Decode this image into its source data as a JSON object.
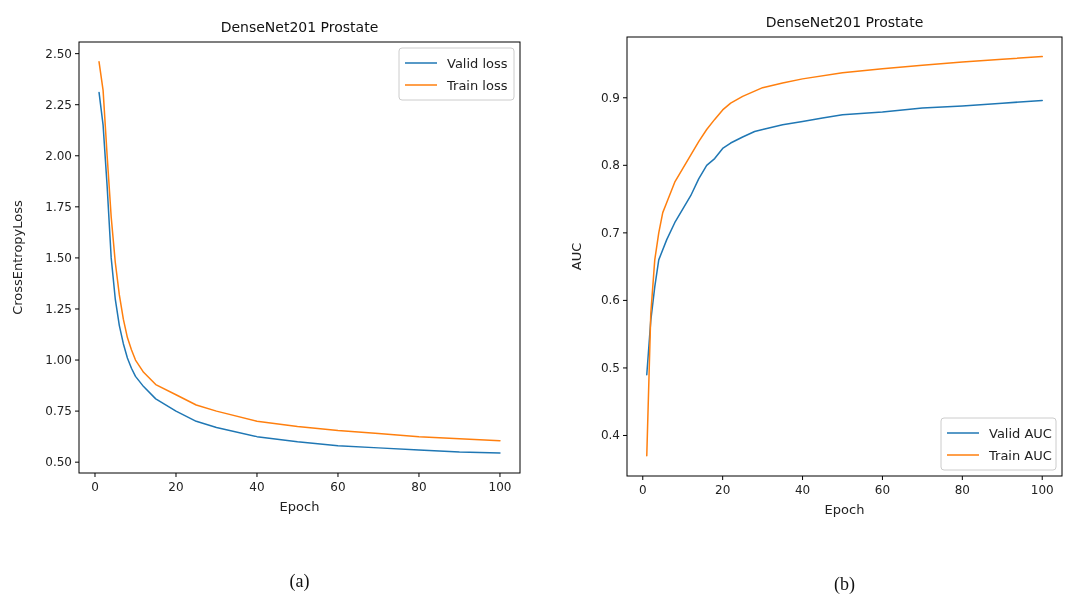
{
  "chart_data": [
    {
      "type": "line",
      "title": "DenseNet201 Prostate",
      "xlabel": "Epoch",
      "ylabel": "CrossEntropyLoss",
      "annotations": [
        "(a)"
      ],
      "legend": "top right",
      "xlim": [
        -3.95,
        104.95
      ],
      "ylim": [
        0.447,
        2.557
      ],
      "xticks": [
        0,
        20,
        40,
        60,
        80,
        100
      ],
      "yticks": [
        {
          "value": 0.5,
          "label": "0.50"
        },
        {
          "value": 0.75,
          "label": "0.75"
        },
        {
          "value": 1.0,
          "label": "1.00"
        },
        {
          "value": 1.25,
          "label": "1.25"
        },
        {
          "value": 1.5,
          "label": "1.50"
        },
        {
          "value": 1.75,
          "label": "1.75"
        },
        {
          "value": 2.0,
          "label": "2.00"
        },
        {
          "value": 2.25,
          "label": "2.25"
        },
        {
          "value": 2.5,
          "label": "2.50"
        }
      ],
      "x": [
        1,
        2,
        3,
        4,
        5,
        6,
        7,
        8,
        9,
        10,
        12,
        15,
        20,
        25,
        30,
        40,
        50,
        60,
        70,
        80,
        90,
        100
      ],
      "series": [
        {
          "name": "Valid loss",
          "color": "#1f77b4",
          "values": [
            2.31,
            2.15,
            1.85,
            1.5,
            1.3,
            1.17,
            1.08,
            1.01,
            0.96,
            0.92,
            0.87,
            0.81,
            0.75,
            0.7,
            0.67,
            0.625,
            0.6,
            0.58,
            0.57,
            0.56,
            0.55,
            0.545
          ]
        },
        {
          "name": "Train loss",
          "color": "#ff7f0e",
          "values": [
            2.46,
            2.32,
            2.0,
            1.7,
            1.48,
            1.32,
            1.2,
            1.11,
            1.05,
            1.0,
            0.94,
            0.88,
            0.83,
            0.78,
            0.75,
            0.7,
            0.675,
            0.655,
            0.64,
            0.625,
            0.615,
            0.605
          ]
        }
      ]
    },
    {
      "type": "line",
      "title": "DenseNet201 Prostate",
      "xlabel": "Epoch",
      "ylabel": "AUC",
      "annotations": [
        "(b)"
      ],
      "legend": "bottom right",
      "xlim": [
        -3.95,
        104.95
      ],
      "ylim": [
        0.34,
        0.99
      ],
      "xticks": [
        0,
        20,
        40,
        60,
        80,
        100
      ],
      "yticks": [
        0.4,
        0.5,
        0.6,
        0.7,
        0.8,
        0.9
      ],
      "series": [
        {
          "name": "Valid AUC",
          "color": "#1f77b4",
          "x": [
            1,
            2,
            3,
            4,
            6,
            8,
            10,
            12,
            14,
            16,
            18,
            20,
            22,
            25,
            28,
            30,
            35,
            40,
            45,
            50,
            60,
            70,
            80,
            90,
            100
          ],
          "values": [
            0.49,
            0.57,
            0.62,
            0.66,
            0.69,
            0.715,
            0.735,
            0.755,
            0.78,
            0.8,
            0.81,
            0.825,
            0.833,
            0.842,
            0.85,
            0.853,
            0.86,
            0.865,
            0.87,
            0.875,
            0.879,
            0.885,
            0.888,
            0.892,
            0.896
          ]
        },
        {
          "name": "Train AUC",
          "color": "#ff7f0e",
          "x": [
            1,
            2,
            3,
            4,
            5,
            6,
            8,
            10,
            12,
            14,
            16,
            18,
            20,
            22,
            25,
            30,
            35,
            40,
            50,
            60,
            70,
            80,
            90,
            100
          ],
          "values": [
            0.37,
            0.58,
            0.66,
            0.7,
            0.73,
            0.745,
            0.775,
            0.795,
            0.815,
            0.835,
            0.853,
            0.868,
            0.882,
            0.892,
            0.902,
            0.915,
            0.922,
            0.928,
            0.937,
            0.943,
            0.948,
            0.953,
            0.957,
            0.961
          ]
        }
      ]
    }
  ]
}
